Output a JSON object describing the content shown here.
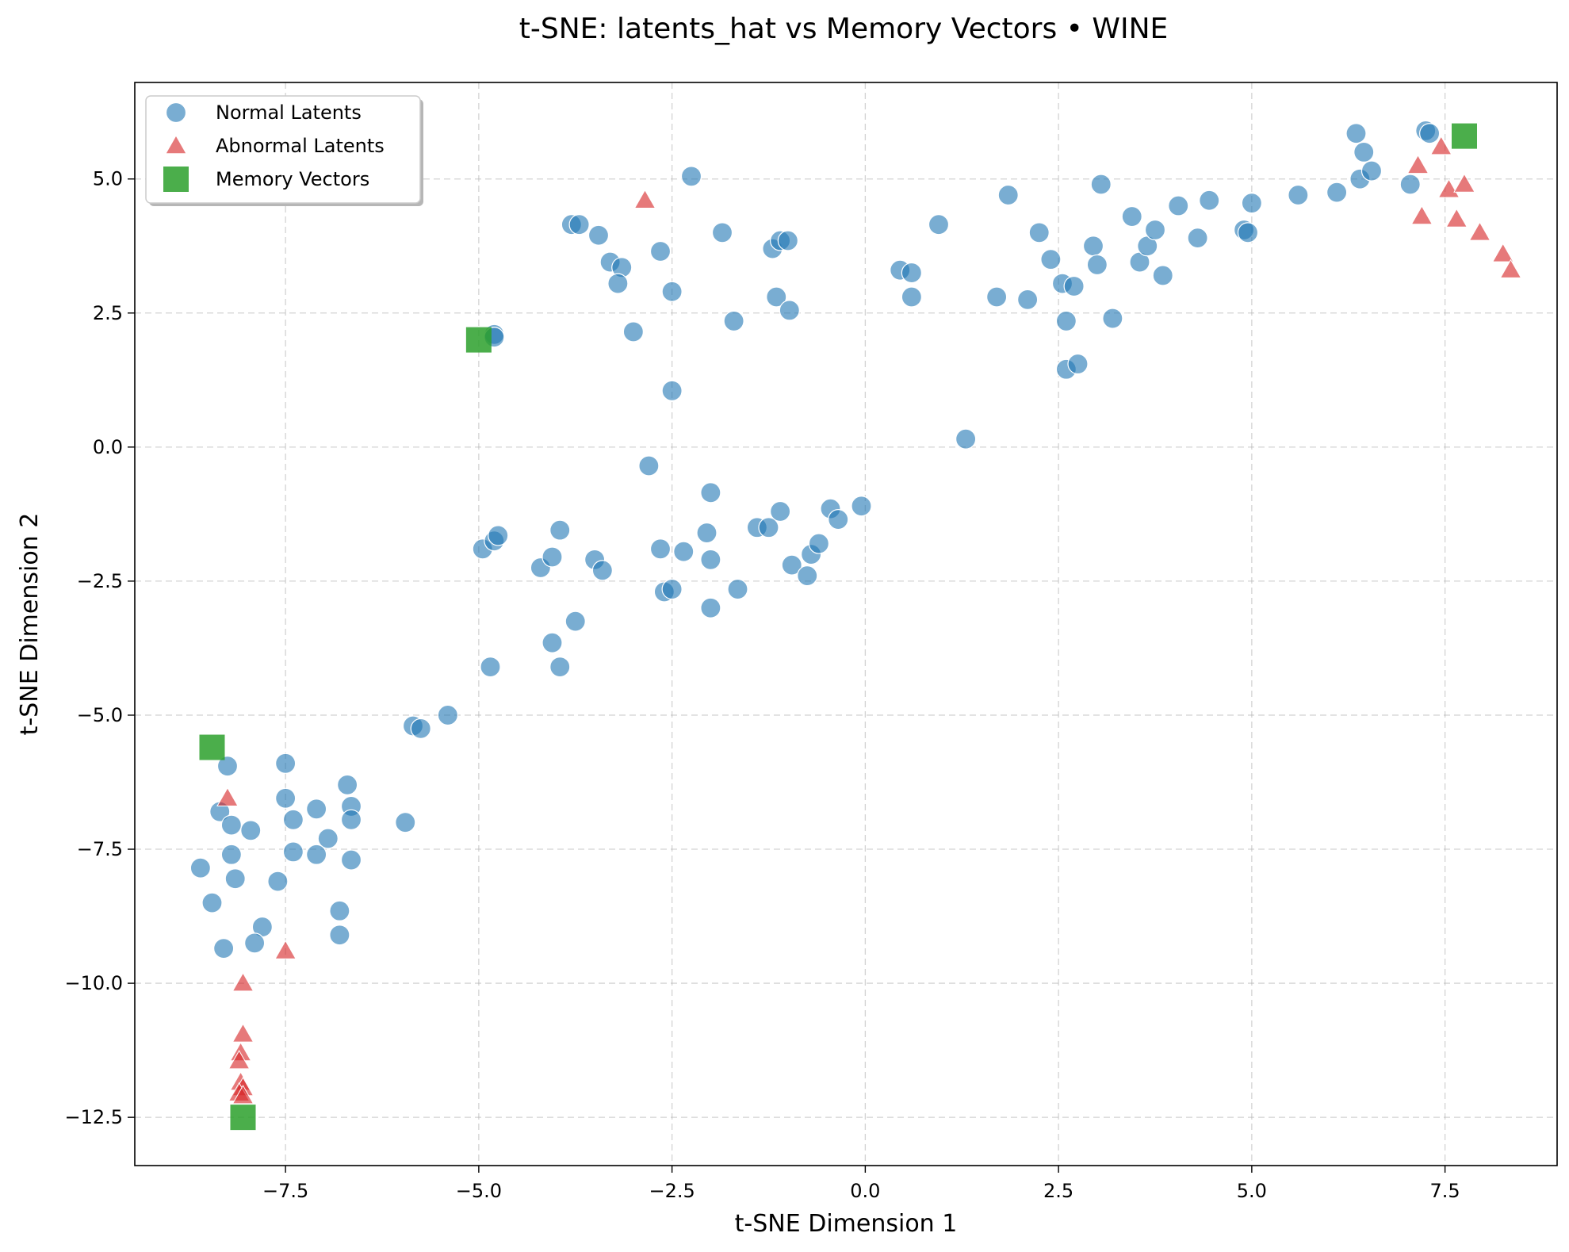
{
  "chart_data": {
    "type": "scatter",
    "title": "t-SNE: latents_hat vs Memory Vectors • WINE",
    "xlabel": "t-SNE Dimension 1",
    "ylabel": "t-SNE Dimension 2",
    "xlim": [
      -9.45,
      8.95
    ],
    "ylim": [
      -13.4,
      6.8
    ],
    "xticks": [
      -7.5,
      -5.0,
      -2.5,
      0.0,
      2.5,
      5.0,
      7.5
    ],
    "xtick_labels": [
      "−7.5",
      "−5.0",
      "−2.5",
      "0.0",
      "2.5",
      "5.0",
      "7.5"
    ],
    "yticks": [
      5.0,
      2.5,
      0.0,
      -2.5,
      -5.0,
      -7.5,
      -10.0,
      -12.5
    ],
    "ytick_labels": [
      "5.0",
      "2.5",
      "0.0",
      "−2.5",
      "−5.0",
      "−7.5",
      "−10.0",
      "−12.5"
    ],
    "grid": true,
    "legend_position": "top-left",
    "series": [
      {
        "name": "Normal Latents",
        "marker": "circle",
        "color": "#1f77b4",
        "points": [
          [
            -8.25,
            -5.95
          ],
          [
            -7.5,
            -5.9
          ],
          [
            -8.35,
            -6.8
          ],
          [
            -8.2,
            -7.05
          ],
          [
            -7.95,
            -7.15
          ],
          [
            -7.5,
            -6.55
          ],
          [
            -7.4,
            -6.95
          ],
          [
            -7.1,
            -6.75
          ],
          [
            -6.7,
            -6.3
          ],
          [
            -6.65,
            -6.7
          ],
          [
            -6.65,
            -6.95
          ],
          [
            -6.95,
            -7.3
          ],
          [
            -8.2,
            -7.6
          ],
          [
            -7.4,
            -7.55
          ],
          [
            -7.1,
            -7.6
          ],
          [
            -6.65,
            -7.7
          ],
          [
            -8.6,
            -7.85
          ],
          [
            -8.15,
            -8.05
          ],
          [
            -7.6,
            -8.1
          ],
          [
            -8.45,
            -8.5
          ],
          [
            -7.8,
            -8.95
          ],
          [
            -8.3,
            -9.35
          ],
          [
            -7.9,
            -9.25
          ],
          [
            -6.8,
            -8.65
          ],
          [
            -6.8,
            -9.1
          ],
          [
            -5.95,
            -7.0
          ],
          [
            -5.85,
            -5.2
          ],
          [
            -5.75,
            -5.25
          ],
          [
            -5.4,
            -5.0
          ],
          [
            -4.85,
            -4.1
          ],
          [
            -3.95,
            -4.1
          ],
          [
            -4.05,
            -3.65
          ],
          [
            -3.75,
            -3.25
          ],
          [
            -4.95,
            -1.9
          ],
          [
            -4.8,
            -1.75
          ],
          [
            -4.75,
            -1.65
          ],
          [
            -4.2,
            -2.25
          ],
          [
            -4.05,
            -2.05
          ],
          [
            -3.95,
            -1.55
          ],
          [
            -3.5,
            -2.1
          ],
          [
            -3.4,
            -2.3
          ],
          [
            -2.65,
            -1.9
          ],
          [
            -2.35,
            -1.95
          ],
          [
            -2.6,
            -2.7
          ],
          [
            -2.5,
            -2.65
          ],
          [
            -2.05,
            -1.6
          ],
          [
            -2.0,
            -2.1
          ],
          [
            -2.0,
            -3.0
          ],
          [
            -1.65,
            -2.65
          ],
          [
            -1.4,
            -1.5
          ],
          [
            -1.25,
            -1.5
          ],
          [
            -1.1,
            -1.2
          ],
          [
            -0.95,
            -2.2
          ],
          [
            -0.75,
            -2.4
          ],
          [
            -0.7,
            -2.0
          ],
          [
            -0.6,
            -1.8
          ],
          [
            -0.45,
            -1.15
          ],
          [
            -0.35,
            -1.35
          ],
          [
            -0.05,
            -1.1
          ],
          [
            -2.8,
            -0.35
          ],
          [
            -2.0,
            -0.85
          ],
          [
            -2.5,
            1.05
          ],
          [
            -4.8,
            2.1
          ],
          [
            -4.8,
            2.05
          ],
          [
            -3.8,
            4.15
          ],
          [
            -3.7,
            4.15
          ],
          [
            -3.45,
            3.95
          ],
          [
            -3.3,
            3.45
          ],
          [
            -3.15,
            3.35
          ],
          [
            -3.2,
            3.05
          ],
          [
            -3.0,
            2.15
          ],
          [
            -2.65,
            3.65
          ],
          [
            -2.5,
            2.9
          ],
          [
            -2.25,
            5.05
          ],
          [
            -1.85,
            4.0
          ],
          [
            -1.7,
            2.35
          ],
          [
            -1.2,
            3.7
          ],
          [
            -1.15,
            2.8
          ],
          [
            -1.1,
            3.85
          ],
          [
            -1.0,
            3.85
          ],
          [
            -0.98,
            2.55
          ],
          [
            0.45,
            3.3
          ],
          [
            0.6,
            3.25
          ],
          [
            0.6,
            2.8
          ],
          [
            0.95,
            4.15
          ],
          [
            1.3,
            0.15
          ],
          [
            1.7,
            2.8
          ],
          [
            1.85,
            4.7
          ],
          [
            2.1,
            2.75
          ],
          [
            2.25,
            4.0
          ],
          [
            2.4,
            3.5
          ],
          [
            2.55,
            3.05
          ],
          [
            2.6,
            2.35
          ],
          [
            2.6,
            1.45
          ],
          [
            2.7,
            3.0
          ],
          [
            2.75,
            1.55
          ],
          [
            2.95,
            3.75
          ],
          [
            3.0,
            3.4
          ],
          [
            3.05,
            4.9
          ],
          [
            3.2,
            2.4
          ],
          [
            3.45,
            4.3
          ],
          [
            3.55,
            3.45
          ],
          [
            3.65,
            3.75
          ],
          [
            3.75,
            4.05
          ],
          [
            3.85,
            3.2
          ],
          [
            4.05,
            4.5
          ],
          [
            4.3,
            3.9
          ],
          [
            4.45,
            4.6
          ],
          [
            4.9,
            4.05
          ],
          [
            5.0,
            4.55
          ],
          [
            4.95,
            4.0
          ],
          [
            5.6,
            4.7
          ],
          [
            6.1,
            4.75
          ],
          [
            6.35,
            5.85
          ],
          [
            6.4,
            5.0
          ],
          [
            6.45,
            5.5
          ],
          [
            6.55,
            5.15
          ],
          [
            7.05,
            4.9
          ],
          [
            7.25,
            5.9
          ],
          [
            7.3,
            5.85
          ]
        ]
      },
      {
        "name": "Abnormal Latents",
        "marker": "triangle",
        "color": "#d62728",
        "points": [
          [
            -2.85,
            4.6
          ],
          [
            -8.25,
            -6.55
          ],
          [
            -7.5,
            -9.4
          ],
          [
            -8.05,
            -10.0
          ],
          [
            -8.05,
            -10.95
          ],
          [
            -8.08,
            -11.3
          ],
          [
            -8.1,
            -11.45
          ],
          [
            -8.08,
            -11.85
          ],
          [
            -8.05,
            -11.95
          ],
          [
            -8.1,
            -12.05
          ],
          [
            -8.05,
            -12.1
          ],
          [
            7.15,
            5.25
          ],
          [
            7.2,
            4.3
          ],
          [
            7.45,
            5.6
          ],
          [
            7.55,
            4.8
          ],
          [
            7.65,
            4.25
          ],
          [
            7.75,
            4.9
          ],
          [
            7.95,
            4.0
          ],
          [
            8.25,
            3.6
          ],
          [
            8.35,
            3.3
          ]
        ]
      },
      {
        "name": "Memory Vectors",
        "marker": "square",
        "color": "#2ca02c",
        "points": [
          [
            -5.0,
            2.0
          ],
          [
            -8.45,
            -5.6
          ],
          [
            -8.05,
            -12.5
          ],
          [
            7.75,
            5.8
          ]
        ]
      }
    ]
  }
}
